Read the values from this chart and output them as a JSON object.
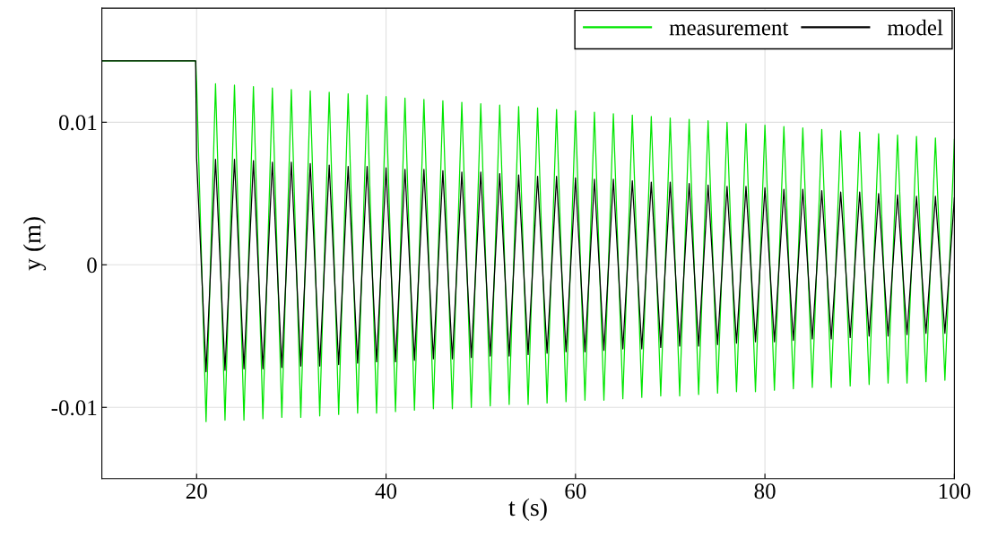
{
  "chart_data": {
    "type": "line",
    "xlabel": "t (s)",
    "ylabel": "y (m)",
    "x": [
      10,
      19.9,
      20,
      21,
      22,
      23,
      24,
      25,
      26,
      27,
      28,
      29,
      30,
      31,
      32,
      33,
      34,
      35,
      36,
      37,
      38,
      39,
      40,
      41,
      42,
      43,
      44,
      45,
      46,
      47,
      48,
      49,
      50,
      51,
      52,
      53,
      54,
      55,
      56,
      57,
      58,
      59,
      60,
      61,
      62,
      63,
      64,
      65,
      66,
      67,
      68,
      69,
      70,
      71,
      72,
      73,
      74,
      75,
      76,
      77,
      78,
      79,
      80,
      81,
      82,
      83,
      84,
      85,
      86,
      87,
      88,
      89,
      90,
      91,
      92,
      93,
      94,
      95,
      96,
      97,
      98,
      99,
      100
    ],
    "series": [
      {
        "name": "measurement",
        "color": "#00e600",
        "values": [
          0.0143,
          0.0143,
          0.0128,
          -0.011,
          0.0127,
          -0.0109,
          0.0126,
          -0.0109,
          0.0125,
          -0.0108,
          0.0124,
          -0.0107,
          0.0123,
          -0.0107,
          0.0122,
          -0.0106,
          0.0121,
          -0.0105,
          0.012,
          -0.0104,
          0.0119,
          -0.0104,
          0.0118,
          -0.0103,
          0.0117,
          -0.0102,
          0.0116,
          -0.0101,
          0.0115,
          -0.0101,
          0.0114,
          -0.01,
          0.0113,
          -0.0099,
          0.0112,
          -0.0098,
          0.0111,
          -0.0098,
          0.011,
          -0.0097,
          0.0109,
          -0.0096,
          0.0108,
          -0.0095,
          0.0107,
          -0.0095,
          0.0106,
          -0.0094,
          0.0105,
          -0.0093,
          0.0104,
          -0.0092,
          0.0103,
          -0.0092,
          0.0102,
          -0.0091,
          0.0101,
          -0.009,
          0.01,
          -0.0089,
          0.0099,
          -0.0089,
          0.0098,
          -0.0088,
          0.0097,
          -0.0087,
          0.0096,
          -0.0086,
          0.0095,
          -0.0086,
          0.0094,
          -0.0085,
          0.0093,
          -0.0084,
          0.0092,
          -0.0083,
          0.0091,
          -0.0083,
          0.009,
          -0.0082,
          0.0089,
          -0.0081,
          0.0088
        ]
      },
      {
        "name": "model",
        "color": "#000000",
        "values": [
          0.0143,
          0.0143,
          0.0075,
          -0.0075,
          0.0074,
          -0.0074,
          0.0074,
          -0.0073,
          0.0073,
          -0.0073,
          0.0072,
          -0.0072,
          0.0072,
          -0.0071,
          0.0071,
          -0.0071,
          0.007,
          -0.007,
          0.0069,
          -0.0069,
          0.0069,
          -0.0068,
          0.0068,
          -0.0068,
          0.0067,
          -0.0067,
          0.0067,
          -0.0066,
          0.0066,
          -0.0066,
          0.0065,
          -0.0065,
          0.0065,
          -0.0064,
          0.0064,
          -0.0064,
          0.0063,
          -0.0063,
          0.0062,
          -0.0062,
          0.0062,
          -0.0061,
          0.0061,
          -0.0061,
          0.006,
          -0.006,
          0.006,
          -0.0059,
          0.0059,
          -0.0059,
          0.0058,
          -0.0058,
          0.0058,
          -0.0057,
          0.0057,
          -0.0057,
          0.0056,
          -0.0056,
          0.0055,
          -0.0055,
          0.0055,
          -0.0054,
          0.0054,
          -0.0054,
          0.0053,
          -0.0053,
          0.0053,
          -0.0052,
          0.0052,
          -0.0052,
          0.0051,
          -0.0051,
          0.0051,
          -0.005,
          0.005,
          -0.005,
          0.0049,
          -0.0049,
          0.0048,
          -0.0048,
          0.0048,
          -0.0048,
          0.0047
        ]
      }
    ],
    "xlim": [
      10,
      100
    ],
    "xticks": [
      20,
      40,
      60,
      80,
      100
    ],
    "ylim": [
      -0.015,
      0.018
    ],
    "yticks": [
      {
        "value": -0.01,
        "label": "-0.01"
      },
      0,
      0.01
    ],
    "grid": true,
    "legend": "top right"
  }
}
